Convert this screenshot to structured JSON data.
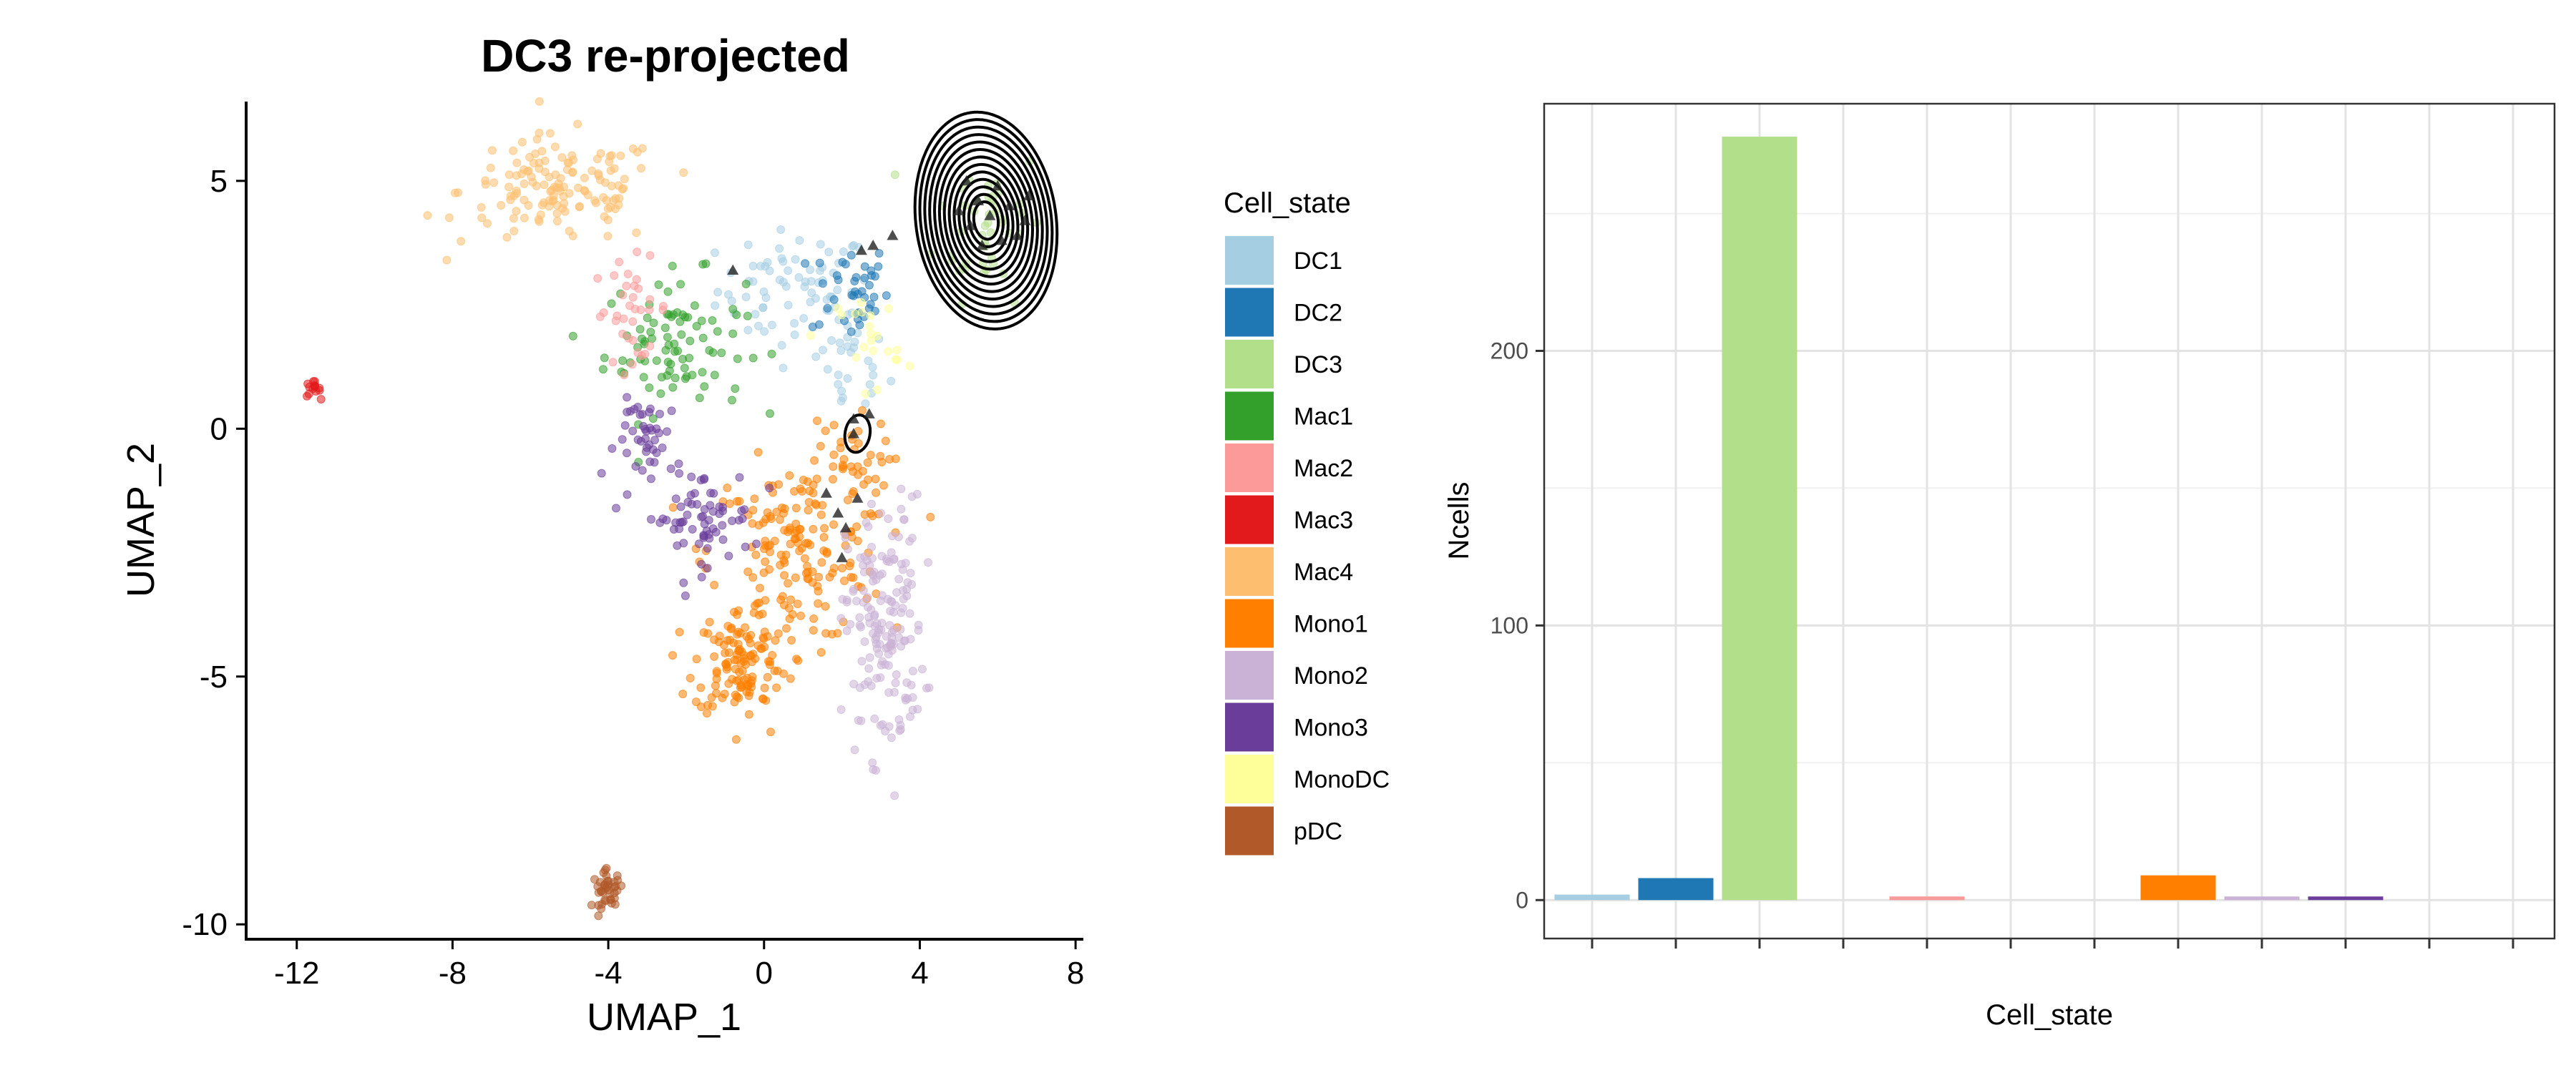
{
  "chart_data": [
    {
      "type": "scatter",
      "title": "DC3 re-projected",
      "xlabel": "UMAP_1",
      "ylabel": "UMAP_2",
      "xlim": [
        -13.3,
        8.2
      ],
      "ylim": [
        -10.3,
        6.6
      ],
      "xticks": [
        -12,
        -8,
        -4,
        0,
        4,
        8
      ],
      "yticks": [
        5,
        0,
        -5,
        -10
      ],
      "xtick_labels": [
        "-12",
        "-8",
        "-4",
        "0",
        "4",
        "8"
      ],
      "ytick_labels": [
        "5",
        "0",
        "-5",
        "-10"
      ],
      "grid": false,
      "legend_position": "right",
      "series": [
        {
          "name": "DC1",
          "color": "#a6cee3",
          "clusters": [
            {
              "cx": 0.8,
              "cy": 2.8,
              "sx": 1.0,
              "sy": 0.6,
              "n": 70
            },
            {
              "cx": 2.2,
              "cy": 1.3,
              "sx": 0.5,
              "sy": 0.6,
              "n": 30
            }
          ]
        },
        {
          "name": "DC2",
          "color": "#1f78b4",
          "clusters": [
            {
              "cx": 2.2,
              "cy": 2.8,
              "sx": 0.5,
              "sy": 0.5,
              "n": 40
            }
          ]
        },
        {
          "name": "DC3",
          "color": "#b2df8a",
          "clusters": [
            {
              "cx": 5.8,
              "cy": 4.2,
              "sx": 0.7,
              "sy": 0.8,
              "n": 45
            }
          ]
        },
        {
          "name": "Mac1",
          "color": "#33a02c",
          "clusters": [
            {
              "cx": -2.3,
              "cy": 1.7,
              "sx": 0.9,
              "sy": 0.7,
              "n": 90
            }
          ]
        },
        {
          "name": "Mac2",
          "color": "#fb9a99",
          "clusters": [
            {
              "cx": -3.4,
              "cy": 2.4,
              "sx": 0.5,
              "sy": 0.5,
              "n": 35
            }
          ]
        },
        {
          "name": "Mac3",
          "color": "#e31a1c",
          "clusters": [
            {
              "cx": -11.6,
              "cy": 0.8,
              "sx": 0.1,
              "sy": 0.08,
              "n": 14
            }
          ]
        },
        {
          "name": "Mac4",
          "color": "#fdbf6f",
          "clusters": [
            {
              "cx": -5.2,
              "cy": 4.8,
              "sx": 1.3,
              "sy": 0.55,
              "n": 140
            }
          ]
        },
        {
          "name": "Mono1",
          "color": "#ff7f00",
          "clusters": [
            {
              "cx": 0.8,
              "cy": -2.5,
              "sx": 1.1,
              "sy": 0.9,
              "n": 170
            },
            {
              "cx": -0.6,
              "cy": -4.7,
              "sx": 0.6,
              "sy": 0.55,
              "n": 120
            },
            {
              "cx": 2.2,
              "cy": -0.8,
              "sx": 0.5,
              "sy": 0.5,
              "n": 40
            }
          ]
        },
        {
          "name": "Mono2",
          "color": "#cab2d6",
          "clusters": [
            {
              "cx": 3.1,
              "cy": -4.0,
              "sx": 0.5,
              "sy": 1.3,
              "n": 170
            }
          ]
        },
        {
          "name": "Mono3",
          "color": "#6a3d9a",
          "clusters": [
            {
              "cx": -1.7,
              "cy": -1.8,
              "sx": 0.7,
              "sy": 0.5,
              "n": 70
            },
            {
              "cx": -2.9,
              "cy": -0.2,
              "sx": 0.45,
              "sy": 0.4,
              "n": 40
            }
          ]
        },
        {
          "name": "MonoDC",
          "color": "#ffff99",
          "clusters": [
            {
              "cx": 2.7,
              "cy": 1.8,
              "sx": 0.4,
              "sy": 0.5,
              "n": 22
            }
          ]
        },
        {
          "name": "pDC",
          "color": "#b15928",
          "clusters": [
            {
              "cx": -4.0,
              "cy": -9.3,
              "sx": 0.2,
              "sy": 0.18,
              "n": 40
            }
          ]
        }
      ],
      "projected_points": [
        [
          5.2,
          5.0
        ],
        [
          5.5,
          4.6
        ],
        [
          6.0,
          4.9
        ],
        [
          5.8,
          4.3
        ],
        [
          6.3,
          4.5
        ],
        [
          6.7,
          4.2
        ],
        [
          5.3,
          4.1
        ],
        [
          6.1,
          3.8
        ],
        [
          6.5,
          3.9
        ],
        [
          5.6,
          3.7
        ],
        [
          5.0,
          4.4
        ],
        [
          6.8,
          4.7
        ],
        [
          2.5,
          3.6
        ],
        [
          2.8,
          3.7
        ],
        [
          3.3,
          3.9
        ],
        [
          -0.8,
          3.2
        ],
        [
          2.3,
          -0.1
        ],
        [
          2.7,
          0.3
        ],
        [
          1.6,
          -1.3
        ],
        [
          1.9,
          -1.7
        ],
        [
          2.1,
          -2.0
        ],
        [
          2.4,
          -1.4
        ],
        [
          2.0,
          -2.6
        ],
        [
          2.3,
          0.2
        ]
      ],
      "density_contours": [
        {
          "cx": 5.7,
          "cy": 4.2,
          "rx": 1.8,
          "ry": 2.2,
          "levels": 13
        },
        {
          "cx": 2.4,
          "cy": -0.1,
          "rx": 0.32,
          "ry": 0.38,
          "levels": 1
        }
      ]
    },
    {
      "type": "bar",
      "title": "",
      "xlabel": "Cell_state",
      "ylabel": "Ncells",
      "ylim": [
        -14,
        290
      ],
      "yticks": [
        0,
        100,
        200
      ],
      "ytick_labels": [
        "0",
        "100",
        "200"
      ],
      "grid": true,
      "categories": [
        "DC1",
        "DC2",
        "DC3",
        "Mac1",
        "Mac2",
        "Mac3",
        "Mac4",
        "Mono1",
        "Mono2",
        "Mono3",
        "MonoDC",
        "pDC"
      ],
      "values": [
        2,
        8,
        278,
        0,
        1,
        0,
        0,
        9,
        1,
        1,
        0,
        0
      ],
      "colors": [
        "#a6cee3",
        "#1f78b4",
        "#b2df8a",
        "#33a02c",
        "#fb9a99",
        "#e31a1c",
        "#fdbf6f",
        "#ff7f00",
        "#cab2d6",
        "#6a3d9a",
        "#ffff99",
        "#b15928"
      ]
    }
  ],
  "legend": {
    "title": "Cell_state",
    "items": [
      {
        "label": "DC1",
        "color": "#a6cee3"
      },
      {
        "label": "DC2",
        "color": "#1f78b4"
      },
      {
        "label": "DC3",
        "color": "#b2df8a"
      },
      {
        "label": "Mac1",
        "color": "#33a02c"
      },
      {
        "label": "Mac2",
        "color": "#fb9a99"
      },
      {
        "label": "Mac3",
        "color": "#e31a1c"
      },
      {
        "label": "Mac4",
        "color": "#fdbf6f"
      },
      {
        "label": "Mono1",
        "color": "#ff7f00"
      },
      {
        "label": "Mono2",
        "color": "#cab2d6"
      },
      {
        "label": "Mono3",
        "color": "#6a3d9a"
      },
      {
        "label": "MonoDC",
        "color": "#ffff99"
      },
      {
        "label": "pDC",
        "color": "#b15928"
      }
    ]
  }
}
